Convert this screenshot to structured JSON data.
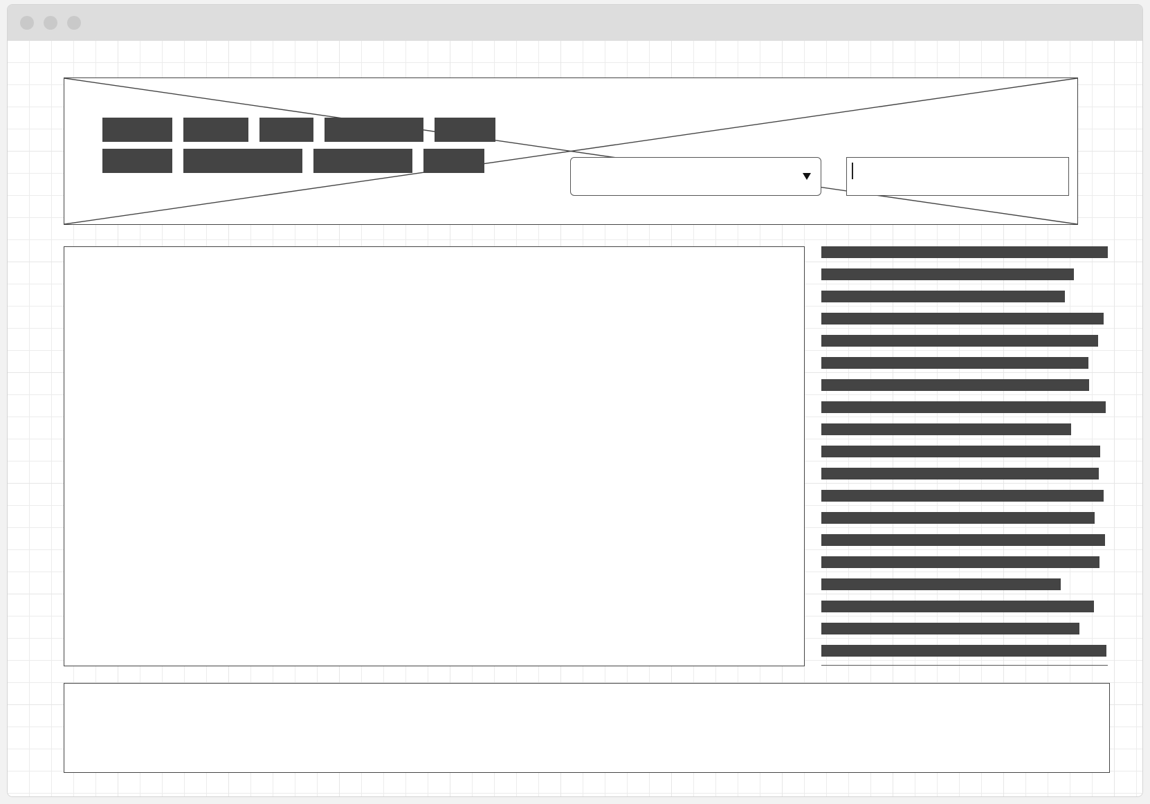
{
  "window": {
    "controls": [
      "close-dot",
      "minimize-dot",
      "zoom-dot"
    ]
  },
  "header": {
    "image_placeholder": "image-placeholder-icon",
    "nav_row_1_count": 5,
    "nav_row_2_count": 4,
    "dropdown": {
      "value": "",
      "icon": "caret-down-icon"
    },
    "search": {
      "value": "",
      "placeholder": ""
    }
  },
  "main": {
    "content": ""
  },
  "sidebar": {
    "item_count": 19
  },
  "footer": {
    "content": ""
  },
  "colors": {
    "block": "#444444",
    "grid": "#e6e6e6",
    "titlebar": "#dddddd",
    "window_dot": "#c9c9c9"
  }
}
